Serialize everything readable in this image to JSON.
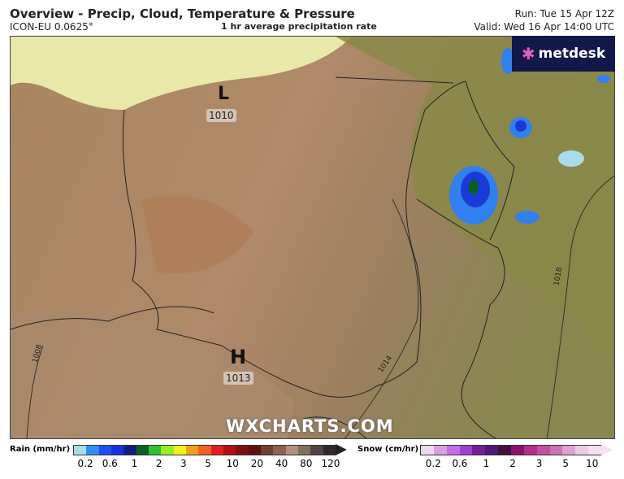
{
  "header": {
    "title": "Overview - Precip, Cloud, Temperature & Pressure",
    "model": "ICON-EU 0.0625°",
    "subtitle": "1 hr average precipitation rate",
    "run": "Run: Tue 15 Apr 12Z",
    "valid": "Valid: Wed 16 Apr 14:00 UTC"
  },
  "logo": {
    "text": "metdesk"
  },
  "watermark": "WXCHARTS.COM",
  "map": {
    "pressure_centers": [
      {
        "type": "L",
        "value": "1010"
      },
      {
        "type": "H",
        "value": "1013"
      }
    ],
    "isobars": [
      "1014",
      "1018",
      "1008"
    ]
  },
  "legend": {
    "rain": {
      "label": "Rain (mm/hr)",
      "ticks": [
        "0.2",
        "0.6",
        "1",
        "2",
        "3",
        "5",
        "10",
        "20",
        "40",
        "80",
        "120"
      ],
      "colors": [
        "#a8dce8",
        "#2f8ff0",
        "#2050f0",
        "#1a30e0",
        "#102080",
        "#0a6020",
        "#30c030",
        "#90f020",
        "#f0f020",
        "#f0a020",
        "#f06020",
        "#e02020",
        "#b01010",
        "#801010",
        "#601010",
        "#704030",
        "#906050",
        "#b09080",
        "#807060",
        "#504540",
        "#302828"
      ]
    },
    "snow": {
      "label": "Snow (cm/hr)",
      "ticks": [
        "0.2",
        "0.6",
        "1",
        "2",
        "3",
        "5",
        "10"
      ],
      "colors": [
        "#f0d8f0",
        "#d8a0e0",
        "#c070e0",
        "#a040d0",
        "#702090",
        "#501870",
        "#401040",
        "#901070",
        "#b03090",
        "#c050a0",
        "#d070b8",
        "#e0a0d0",
        "#ecc8e4",
        "#f4e0f0"
      ]
    }
  }
}
